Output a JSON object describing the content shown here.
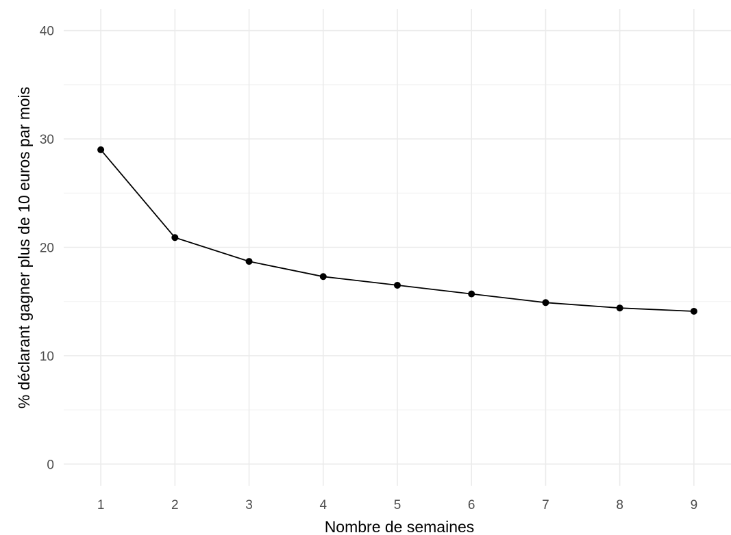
{
  "chart_data": {
    "type": "line",
    "title": "",
    "xlabel": "Nombre de semaines",
    "ylabel": "% déclarant gagner plus de 10 euros par mois",
    "x": [
      1,
      2,
      3,
      4,
      5,
      6,
      7,
      8,
      9
    ],
    "series": [
      {
        "values": [
          29.0,
          20.9,
          18.7,
          17.3,
          16.5,
          15.7,
          14.9,
          14.4,
          14.1
        ]
      }
    ],
    "xlim": [
      0.5,
      9.5
    ],
    "ylim": [
      -2,
      42
    ],
    "x_ticks": [
      "1",
      "2",
      "3",
      "4",
      "5",
      "6",
      "7",
      "8",
      "9"
    ],
    "y_ticks": [
      "0",
      "10",
      "20",
      "30",
      "40"
    ],
    "grid": true,
    "legend": "none",
    "colors": {
      "line": "#000000",
      "points": "#000000",
      "grid": "#ebebeb"
    }
  }
}
